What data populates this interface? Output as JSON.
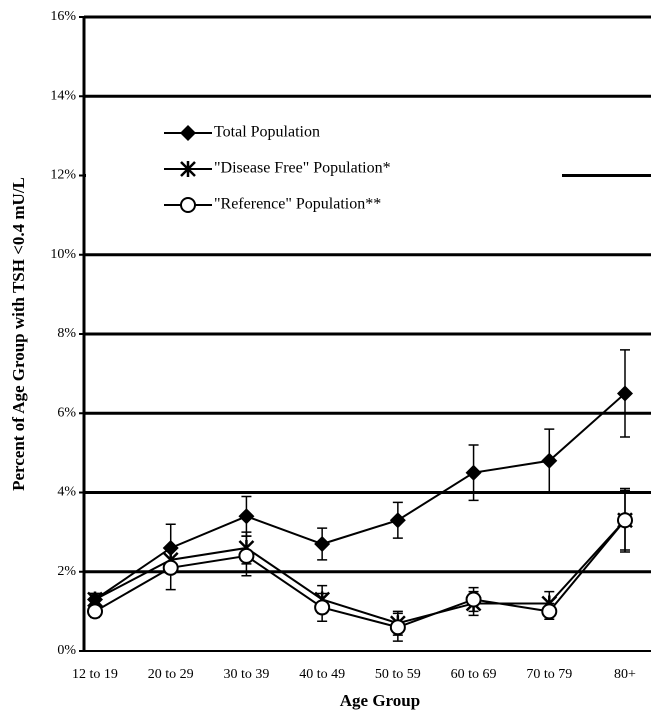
{
  "chart_data": {
    "type": "line",
    "x_label": "Age Group",
    "y_label": "Percent of Age Group with TSH <0.4 mU/L",
    "categories": [
      "12 to 19",
      "20 to 29",
      "30 to 39",
      "40 to 49",
      "50 to 59",
      "60 to 69",
      "70 to 79",
      "80+"
    ],
    "series": [
      {
        "name": "Total Population",
        "color": "#000000",
        "marker": "diamond",
        "values": [
          1.3,
          2.6,
          3.4,
          2.7,
          3.3,
          4.5,
          4.8,
          6.5
        ],
        "errors": [
          0.15,
          0.6,
          0.5,
          0.4,
          0.45,
          0.7,
          0.8,
          1.1
        ]
      },
      {
        "name": "\"Disease Free\" Population*",
        "color": "#000000",
        "marker": "asterisk",
        "values": [
          1.3,
          2.3,
          2.6,
          1.3,
          0.7,
          1.2,
          1.2,
          3.3
        ],
        "errors": [
          0.15,
          0.3,
          0.4,
          0.35,
          0.3,
          0.3,
          0.3,
          0.75
        ]
      },
      {
        "name": "\"Reference\" Population**",
        "color": "#000000",
        "marker": "circle",
        "values": [
          1.0,
          2.1,
          2.4,
          1.1,
          0.6,
          1.3,
          1.0,
          3.3
        ],
        "errors": [
          0.15,
          0.55,
          0.5,
          0.35,
          0.35,
          0.3,
          0.2,
          0.8
        ]
      }
    ],
    "ylim": [
      0,
      16
    ],
    "yticks": [
      {
        "value": 0,
        "label": "0%"
      },
      {
        "value": 2,
        "label": "2%"
      },
      {
        "value": 4,
        "label": "4%"
      },
      {
        "value": 6,
        "label": "6%"
      },
      {
        "value": 8,
        "label": "8%"
      },
      {
        "value": 10,
        "label": "10%"
      },
      {
        "value": 12,
        "label": "12%"
      },
      {
        "value": 14,
        "label": "14%"
      },
      {
        "value": 16,
        "label": "16%"
      }
    ],
    "grid": true,
    "legend": "upper-left"
  }
}
